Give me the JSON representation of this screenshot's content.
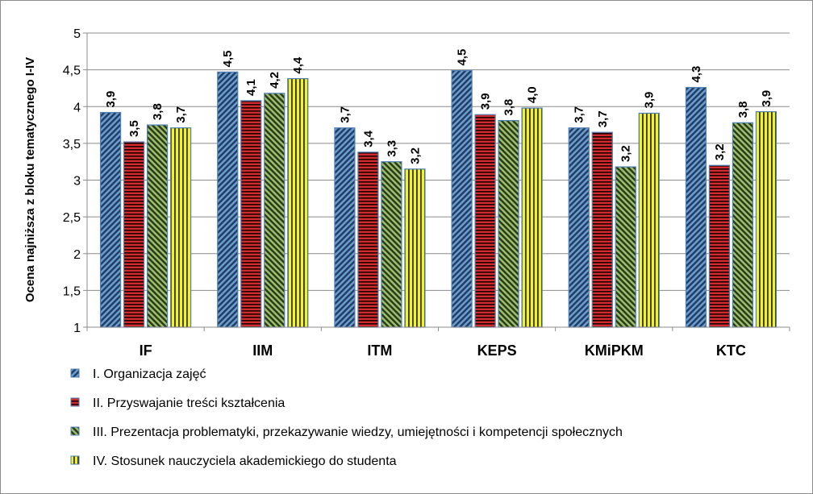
{
  "chart_data": {
    "type": "bar",
    "ylabel": "Ocena najniższa z bloku tematycznego I-IV",
    "xlabel": "",
    "ylim": [
      1,
      5
    ],
    "yticks": [
      "1",
      "1,5",
      "2",
      "2,5",
      "3",
      "3,5",
      "4",
      "4,5",
      "5"
    ],
    "grid": true,
    "legend_position": "bottom",
    "categories": [
      "IF",
      "IIM",
      "ITM",
      "KEPS",
      "KMiPKM",
      "KTC"
    ],
    "series": [
      {
        "name": "I. Organizacja zajęć",
        "color": "#2e5c8a",
        "pattern": "diagonal-stripes",
        "values": [
          3.92,
          4.47,
          3.71,
          4.49,
          3.71,
          4.26
        ],
        "labels": [
          "3,9",
          "4,5",
          "3,7",
          "4,5",
          "3,7",
          "4,3"
        ]
      },
      {
        "name": "II. Przyswajanie treści kształcenia",
        "color": "#c0202a",
        "pattern": "horizontal-stripes",
        "values": [
          3.52,
          4.08,
          3.38,
          3.89,
          3.65,
          3.2
        ],
        "labels": [
          "3,5",
          "4,1",
          "3,4",
          "3,9",
          "3,7",
          "3,2"
        ]
      },
      {
        "name": "III. Prezentacja problematyki, przekazywanie wiedzy, umiejętności i kompetencji społecznych",
        "color": "#6a8a3a",
        "pattern": "diagonal-stripes",
        "values": [
          3.75,
          4.18,
          3.25,
          3.81,
          3.18,
          3.78
        ],
        "labels": [
          "3,8",
          "4,2",
          "3,3",
          "3,8",
          "3,2",
          "3,8"
        ]
      },
      {
        "name": "IV. Stosunek nauczyciela akademickiego do studenta",
        "color": "#e8e820",
        "pattern": "vertical-stripes",
        "values": [
          3.71,
          4.38,
          3.15,
          3.98,
          3.91,
          3.93
        ],
        "labels": [
          "3,7",
          "4,4",
          "3,2",
          "4,0",
          "3,9",
          "3,9"
        ]
      }
    ]
  }
}
